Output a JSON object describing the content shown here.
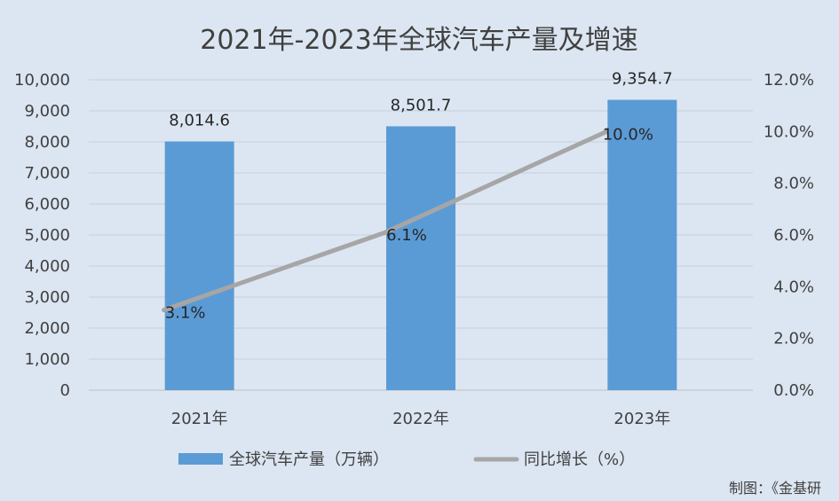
{
  "chart_data": {
    "type": "bar",
    "title": "2021年-2023年全球汽车产量及增速",
    "categories": [
      "2021年",
      "2022年",
      "2023年"
    ],
    "series": [
      {
        "name": "全球汽车产量（万辆）",
        "type": "bar",
        "axis": "left",
        "values": [
          8014.6,
          8501.7,
          9354.7
        ],
        "labels": [
          "8,014.6",
          "8,501.7",
          "9,354.7"
        ],
        "color": "#5b9bd5"
      },
      {
        "name": "同比增长（%）",
        "type": "line",
        "axis": "right",
        "values": [
          3.1,
          6.1,
          10.0
        ],
        "labels": [
          "3.1%",
          "6.1%",
          "10.0%"
        ],
        "color": "#a6a6a6"
      }
    ],
    "y_left": {
      "ylim": [
        0,
        10000
      ],
      "ticks": [
        0,
        1000,
        2000,
        3000,
        4000,
        5000,
        6000,
        7000,
        8000,
        9000,
        10000
      ],
      "tick_labels": [
        "0",
        "1,000",
        "2,000",
        "3,000",
        "4,000",
        "5,000",
        "6,000",
        "7,000",
        "8,000",
        "9,000",
        "10,000"
      ]
    },
    "y_right": {
      "ylim": [
        0,
        12
      ],
      "ticks": [
        0,
        2,
        4,
        6,
        8,
        10,
        12
      ],
      "tick_labels": [
        "0.0%",
        "2.0%",
        "4.0%",
        "6.0%",
        "8.0%",
        "10.0%",
        "12.0%"
      ]
    },
    "grid": true,
    "legend_position": "bottom",
    "credit": "制图：《金基研"
  }
}
